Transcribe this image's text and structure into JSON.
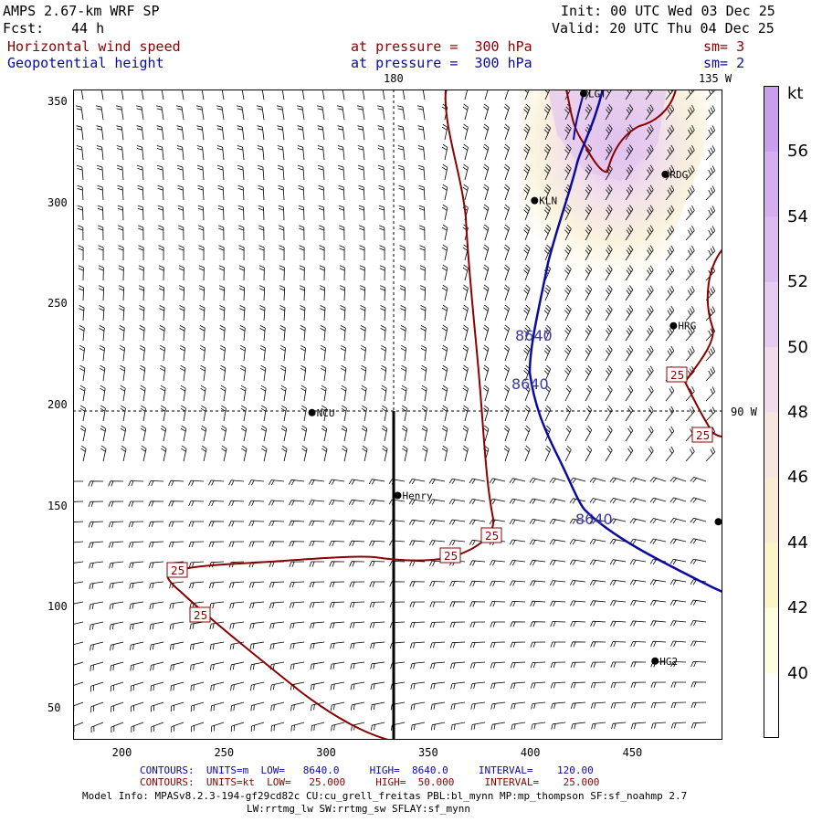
{
  "header": {
    "model": "AMPS 2.67-km WRF SP",
    "forecast_label": "Fcst:",
    "forecast_hours": "44 h",
    "init": "Init: 00 UTC Wed 03 Dec 25",
    "valid": "Valid: 20 UTC Thu 04 Dec 25",
    "field1": {
      "name": "Horizontal wind speed",
      "level": "at pressure =  300 hPa",
      "smooth": "sm= 3"
    },
    "field2": {
      "name": "Geopotential height",
      "level": "at pressure =  300 hPa",
      "smooth": "sm= 2"
    }
  },
  "map": {
    "x_ticks": [
      200,
      250,
      300,
      350,
      400,
      450
    ],
    "y_ticks": [
      50,
      100,
      150,
      200,
      250,
      300,
      350
    ],
    "x_range": [
      176,
      494
    ],
    "y_range": [
      34,
      356
    ],
    "meridian_labels": {
      "lon180": "180",
      "lon135w": "135 W",
      "lon90w": "90 W"
    },
    "stations": [
      {
        "name": "LGT",
        "x": 426,
        "y": 354
      },
      {
        "name": "RDG",
        "x": 466,
        "y": 314
      },
      {
        "name": "KLN",
        "x": 402,
        "y": 301
      },
      {
        "name": "HRG",
        "x": 470,
        "y": 239
      },
      {
        "name": "NCU",
        "x": 293,
        "y": 196
      },
      {
        "name": "Henry",
        "x": 335,
        "y": 155
      },
      {
        "name": "",
        "x": 492,
        "y": 142
      },
      {
        "name": "HG2",
        "x": 461,
        "y": 73
      }
    ],
    "height_contour_label": "8640",
    "speed_contour_label": "25"
  },
  "legend": {
    "unit": "kt",
    "levels": [
      40,
      42,
      44,
      46,
      48,
      50,
      52,
      54,
      56
    ],
    "colors": [
      "#ffffff",
      "#fdfde0",
      "#fbf5c8",
      "#f8edd3",
      "#f6e6e0",
      "#f0dcea",
      "#e6cdef",
      "#dcbcf0",
      "#d4aeef",
      "#c99eec"
    ]
  },
  "footer": {
    "contours1": "CONTOURS:  UNITS=m  LOW=   8640.0     HIGH=  8640.0     INTERVAL=    120.00",
    "contours2": "CONTOURS:  UNITS=kt  LOW=   25.000     HIGH=  50.000     INTERVAL=    25.000",
    "model_info": "Model Info: MPASv8.2.3-194-gf29cd82c CU:cu_grell_freitas PBL:bl_mynn MP:mp_thompson SF:sf_noahmp 2.7",
    "model_info2": "LW:rrtmg_lw SW:rrtmg_sw SFLAY:sf_mynn"
  }
}
